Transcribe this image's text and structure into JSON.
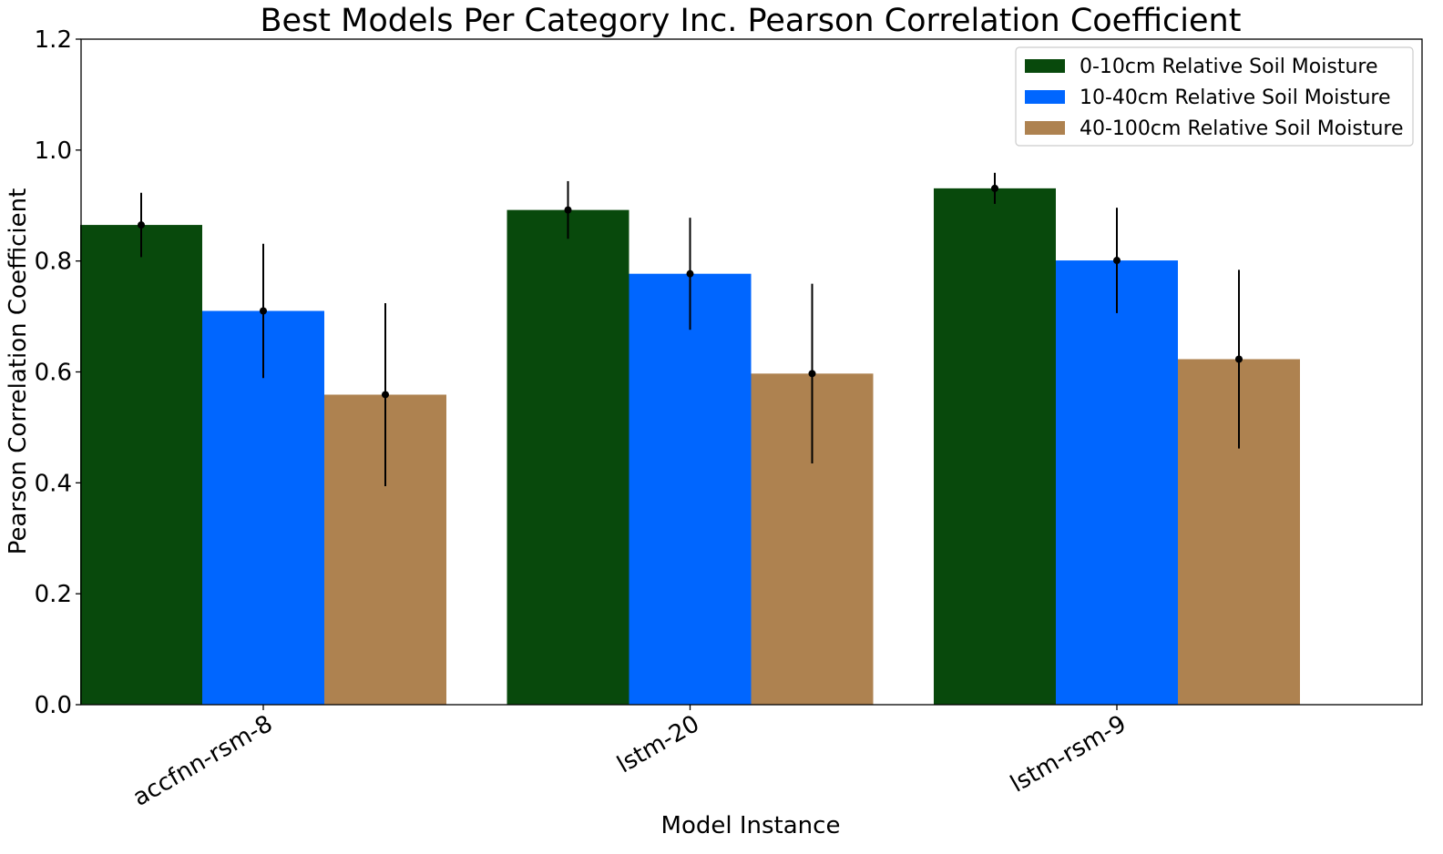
{
  "chart_data": {
    "type": "bar",
    "title": "Best Models Per Category Inc. Pearson Correlation Coefficient",
    "xlabel": "Model Instance",
    "ylabel": "Pearson Correlation Coefficient",
    "categories": [
      "accfnn-rsm-8",
      "lstm-20",
      "lstm-rsm-9"
    ],
    "ylim": [
      0.0,
      1.2
    ],
    "yticks": [
      "0.0",
      "0.2",
      "0.4",
      "0.6",
      "0.8",
      "1.0",
      "1.2"
    ],
    "ytick_values": [
      0.0,
      0.2,
      0.4,
      0.6,
      0.8,
      1.0,
      1.2
    ],
    "grid": false,
    "legend_position": "top-right",
    "series": [
      {
        "name": "0-10cm Relative Soil Moisture",
        "color": "#08490c",
        "values": [
          0.865,
          0.892,
          0.931
        ],
        "errors": [
          0.058,
          0.052,
          0.028
        ]
      },
      {
        "name": "10-40cm Relative Soil Moisture",
        "color": "#0066ff",
        "values": [
          0.71,
          0.777,
          0.801
        ],
        "errors": [
          0.121,
          0.101,
          0.095
        ]
      },
      {
        "name": "40-100cm Relative Soil Moisture",
        "color": "#ae8250",
        "values": [
          0.559,
          0.597,
          0.623
        ],
        "errors": [
          0.165,
          0.162,
          0.161
        ]
      }
    ]
  }
}
